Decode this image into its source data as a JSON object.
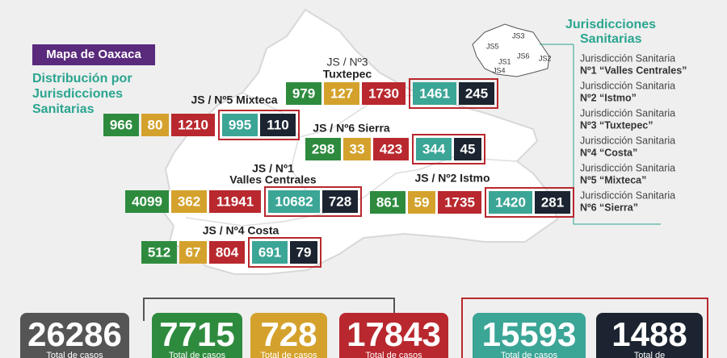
{
  "badge": "Mapa de Oaxaca",
  "subtitle": [
    "Distribución por",
    "Jurisdicciones",
    "Sanitarias"
  ],
  "legend": {
    "title": [
      "Jurisdicciones",
      "Sanitarias"
    ],
    "items": [
      [
        "Jurisdicción Sanitaria",
        "Nº1 “Valles Centrales”"
      ],
      [
        "Jurisdicción Sanitaria",
        "Nº2 “Istmo”"
      ],
      [
        "Jurisdicción Sanitaria",
        "Nº3 “Tuxtepec”"
      ],
      [
        "Jurisdicción Sanitaria",
        "Nº4 “Costa”"
      ],
      [
        "Jurisdicción Sanitaria",
        "Nº5 “Mixteca”"
      ],
      [
        "Jurisdicción Sanitaria",
        "Nº6 “Sierra”"
      ]
    ]
  },
  "mini_map": [
    "JS1",
    "JS2",
    "JS3",
    "JS4",
    "JS5",
    "JS6"
  ],
  "regions": [
    {
      "label": [
        "JS / Nº5 Mixteca"
      ],
      "values": [
        966,
        80,
        1210,
        995,
        110
      ]
    },
    {
      "label": [
        "JS / Nº3",
        "Tuxtepec"
      ],
      "values": [
        979,
        127,
        1730,
        1461,
        245
      ]
    },
    {
      "label": [
        "JS / Nº6 Sierra"
      ],
      "values": [
        298,
        33,
        423,
        344,
        45
      ]
    },
    {
      "label": [
        "JS / Nº1",
        "Valles Centrales"
      ],
      "values": [
        4099,
        362,
        11941,
        10682,
        728
      ]
    },
    {
      "label": [
        "JS / Nº2 Istmo"
      ],
      "values": [
        861,
        59,
        1735,
        1420,
        281
      ]
    },
    {
      "label": [
        "JS / Nº4 Costa"
      ],
      "values": [
        512,
        67,
        804,
        691,
        79
      ]
    }
  ],
  "totals": [
    {
      "value": 26286,
      "caption": "Total de casos"
    },
    {
      "value": 7715,
      "caption": "Total de casos"
    },
    {
      "value": 728,
      "caption": "Total de casos"
    },
    {
      "value": 17843,
      "caption": "Total de casos"
    },
    {
      "value": 15593,
      "caption": "Total de casos"
    },
    {
      "value": 1488,
      "caption": "Total de"
    }
  ]
}
